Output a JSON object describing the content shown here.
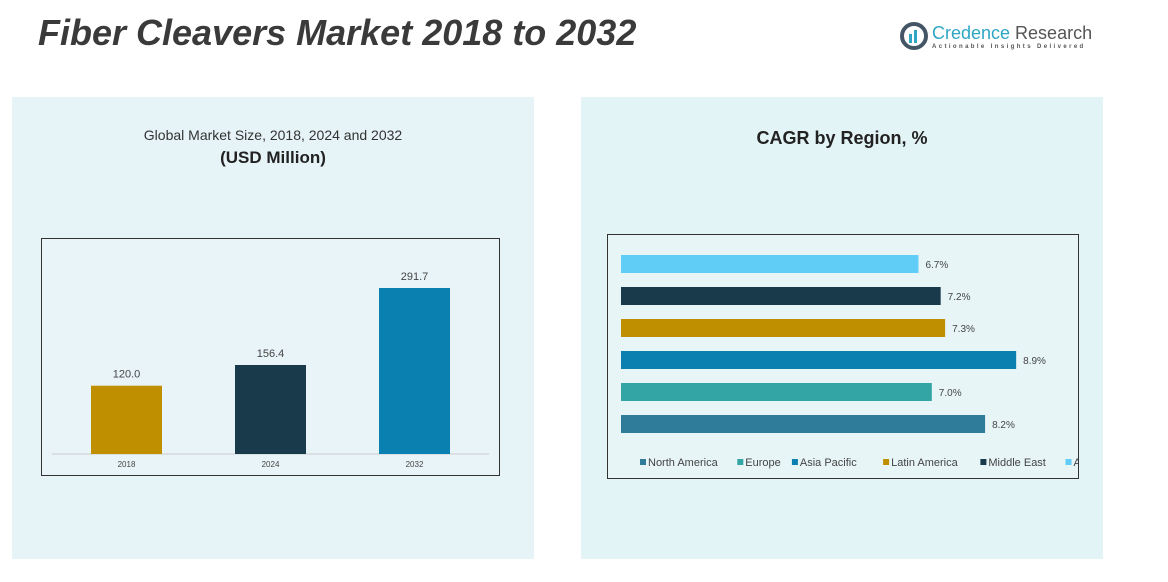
{
  "title": "Fiber Cleavers Market 2018 to 2032",
  "logo": {
    "brand1": "Credence",
    "brand2": " Research",
    "tagline": "Actionable Insights Delivered"
  },
  "left": {
    "title": "Global Market Size, 2018, 2024 and 2032",
    "subtitle": "(USD Million)"
  },
  "right": {
    "title": "CAGR by Region, %"
  },
  "colors": {
    "north_america": "#2e7b9a",
    "europe": "#33a5a5",
    "asia_pacific": "#0a80b0",
    "latin_america": "#bf8f00",
    "middle_east": "#183a4a",
    "africa": "#5fcdf5"
  },
  "chart_data": [
    {
      "type": "bar",
      "title": "Global Market Size, 2018, 2024 and 2032",
      "ylabel": "USD Million",
      "categories": [
        "2018",
        "2024",
        "2032"
      ],
      "values": [
        120.0,
        156.4,
        291.7
      ],
      "labels": [
        "120.0",
        "156.4",
        "291.7"
      ],
      "colors": [
        "#bf8f00",
        "#183a4a",
        "#0a80b0"
      ],
      "ylim": [
        0,
        300
      ]
    },
    {
      "type": "bar",
      "orientation": "horizontal",
      "title": "CAGR by Region, %",
      "categories": [
        "North America",
        "Europe",
        "Asia Pacific",
        "Latin America",
        "Middle East",
        "Africa"
      ],
      "values": [
        8.2,
        7.0,
        8.9,
        7.3,
        7.2,
        6.7
      ],
      "labels": [
        "8.2%",
        "7.0%",
        "8.9%",
        "7.3%",
        "7.2%",
        "6.7%"
      ],
      "colors": [
        "#2e7b9a",
        "#33a5a5",
        "#0a80b0",
        "#bf8f00",
        "#183a4a",
        "#5fcdf5"
      ],
      "xlim": [
        0,
        10
      ],
      "legend": "bottom"
    }
  ]
}
